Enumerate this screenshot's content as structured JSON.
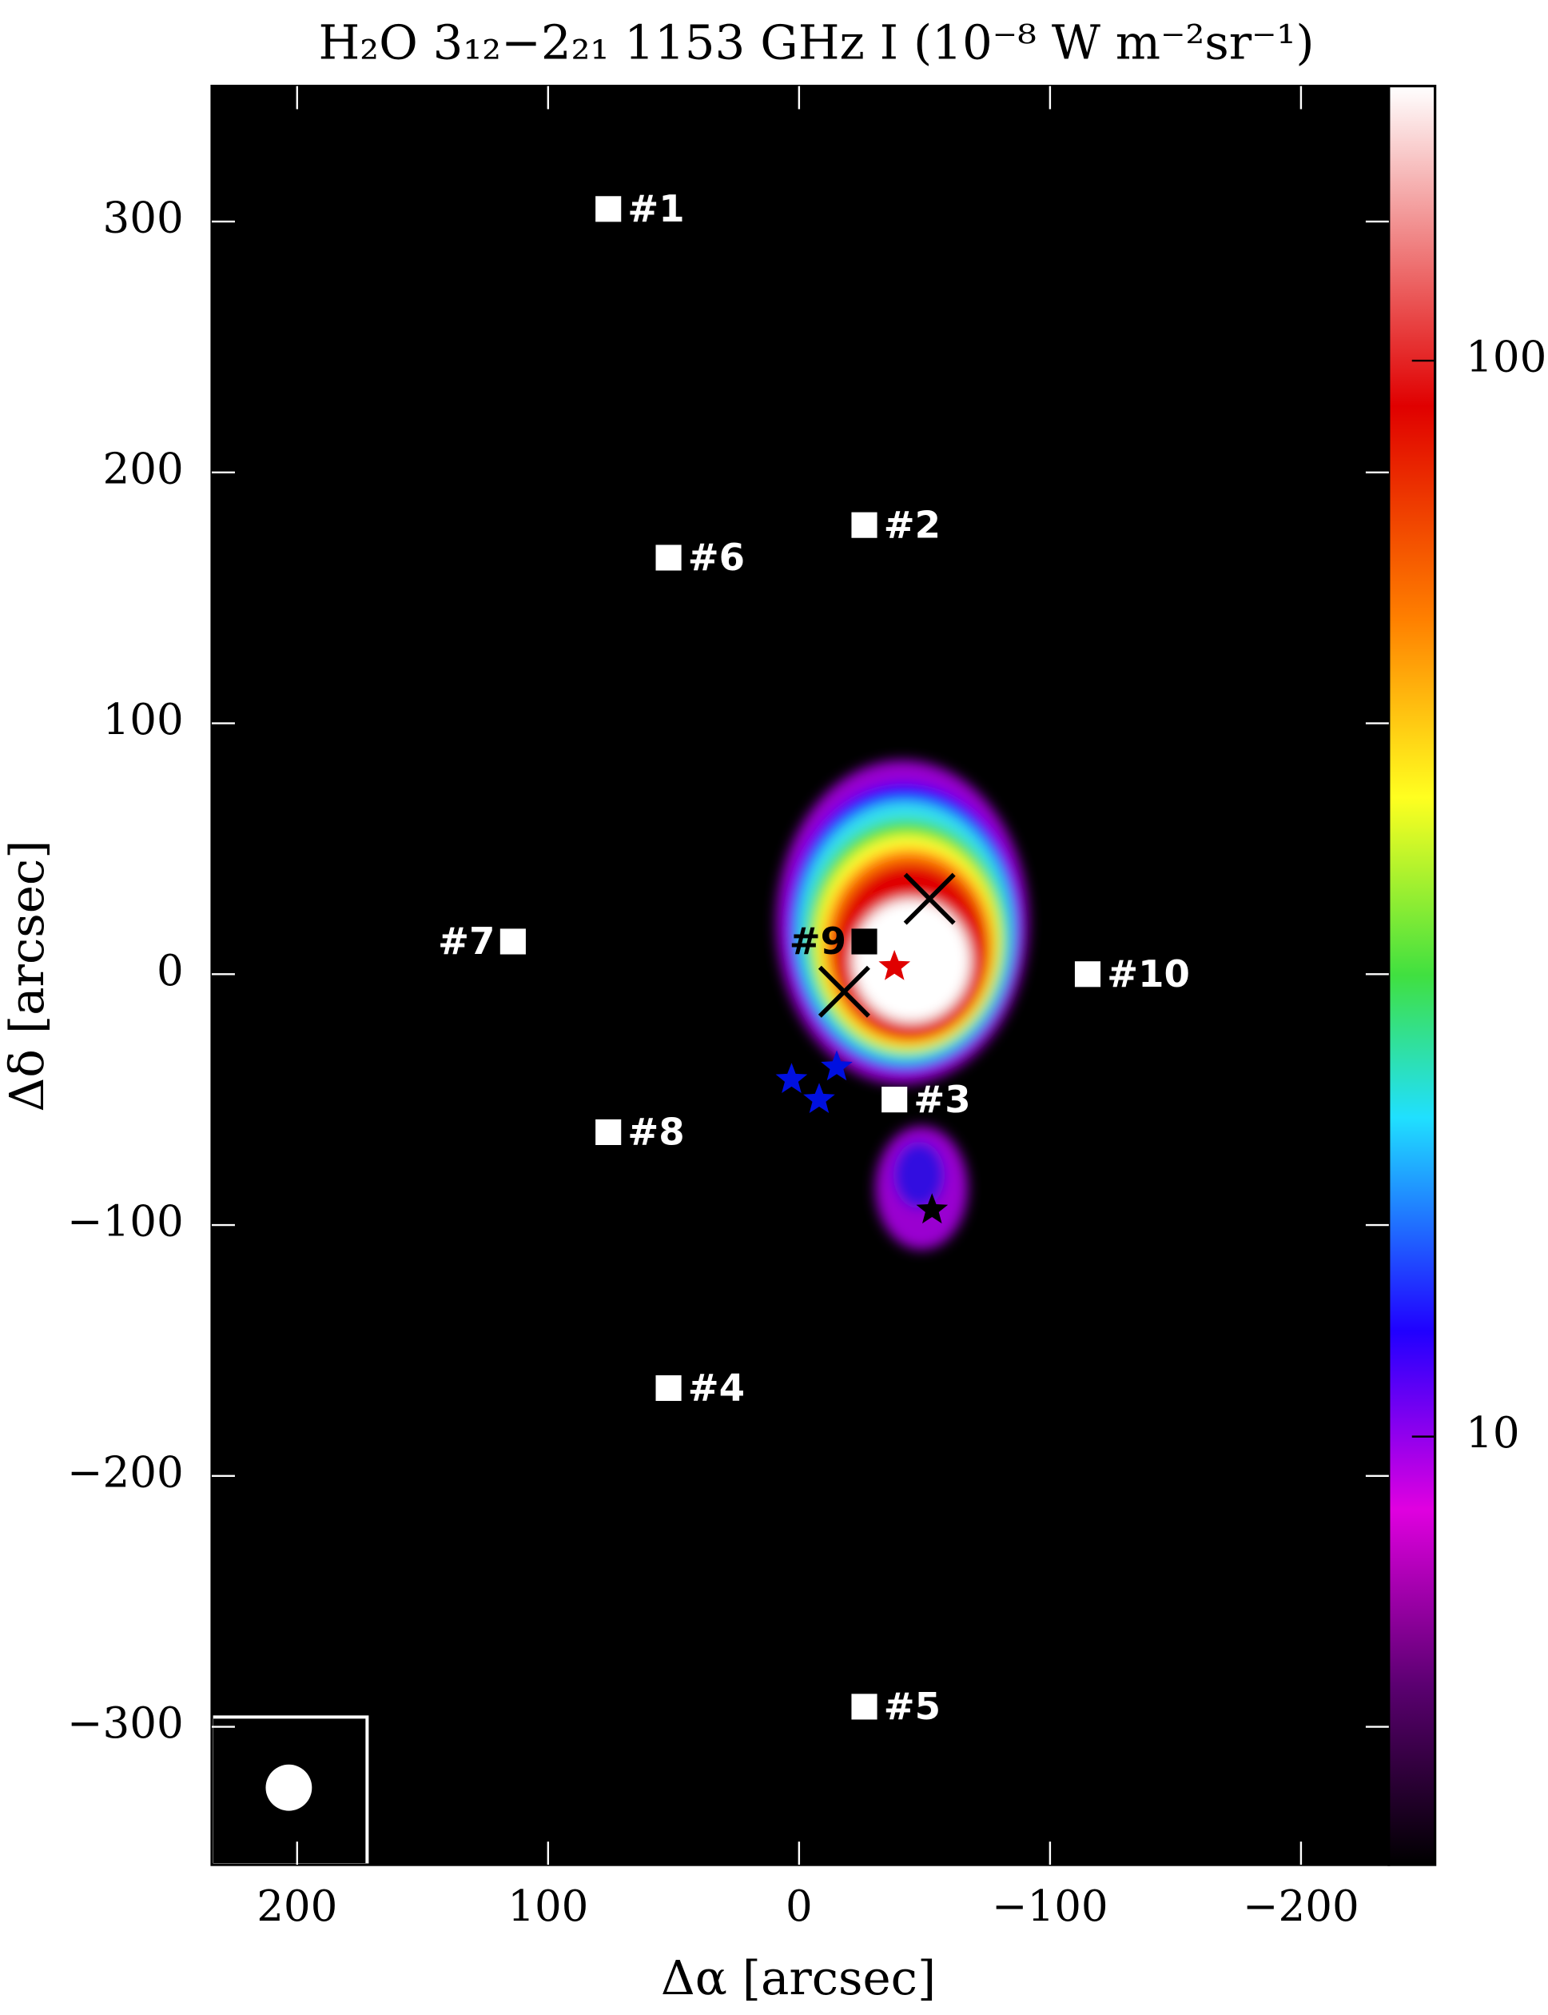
{
  "chart_data": {
    "type": "map",
    "title": "H₂O 3₁₂−2₂₁ 1153 GHz  I (10⁻⁸ W m⁻²sr⁻¹)",
    "x_label": "Δα [arcsec]",
    "y_label": "Δδ [arcsec]",
    "xlim": [
      234,
      -235
    ],
    "ylim": [
      -355,
      354
    ],
    "xticks": [
      200,
      100,
      0,
      {
        "value": -100,
        "label": "−100"
      },
      {
        "value": -200,
        "label": "−200"
      }
    ],
    "yticks": [
      {
        "value": -300,
        "label": "−300"
      },
      {
        "value": -200,
        "label": "−200"
      },
      {
        "value": -100,
        "label": "−100"
      },
      0,
      100,
      200,
      300
    ],
    "colorbar": {
      "lim": [
        4,
        180
      ],
      "ticks": [
        10,
        100
      ],
      "log": true
    },
    "squares": [
      {
        "label": "#1",
        "x": 76,
        "y": 305,
        "color": "#ffffff",
        "label_side": "right"
      },
      {
        "label": "#2",
        "x": -26,
        "y": 179,
        "color": "#ffffff",
        "label_side": "right"
      },
      {
        "label": "#3",
        "x": -38,
        "y": -50,
        "color": "#ffffff",
        "label_side": "right"
      },
      {
        "label": "#4",
        "x": 52,
        "y": -165,
        "color": "#ffffff",
        "label_side": "right"
      },
      {
        "label": "#5",
        "x": -26,
        "y": -292,
        "color": "#ffffff",
        "label_side": "right"
      },
      {
        "label": "#6",
        "x": 52,
        "y": 166,
        "color": "#ffffff",
        "label_side": "right"
      },
      {
        "label": "#7",
        "x": 114,
        "y": 13,
        "color": "#ffffff",
        "label_side": "left"
      },
      {
        "label": "#8",
        "x": 76,
        "y": -63,
        "color": "#ffffff",
        "label_side": "right"
      },
      {
        "label": "#9",
        "x": -26,
        "y": 13,
        "color": "#000000",
        "label_side": "left"
      },
      {
        "label": "#10",
        "x": -115,
        "y": 0,
        "color": "#ffffff",
        "label_side": "right"
      }
    ],
    "crosses": [
      {
        "x": -52,
        "y": 30
      },
      {
        "x": -18,
        "y": -7
      }
    ],
    "stars": [
      {
        "x": -38,
        "y": 3,
        "color": "#e00000"
      },
      {
        "x": -53,
        "y": -94,
        "color": "#000000"
      },
      {
        "x": 3,
        "y": -42,
        "color": "#0010e0"
      },
      {
        "x": -8,
        "y": -50,
        "color": "#0010e0"
      },
      {
        "x": -15,
        "y": -37,
        "color": "#0010e0"
      }
    ]
  }
}
